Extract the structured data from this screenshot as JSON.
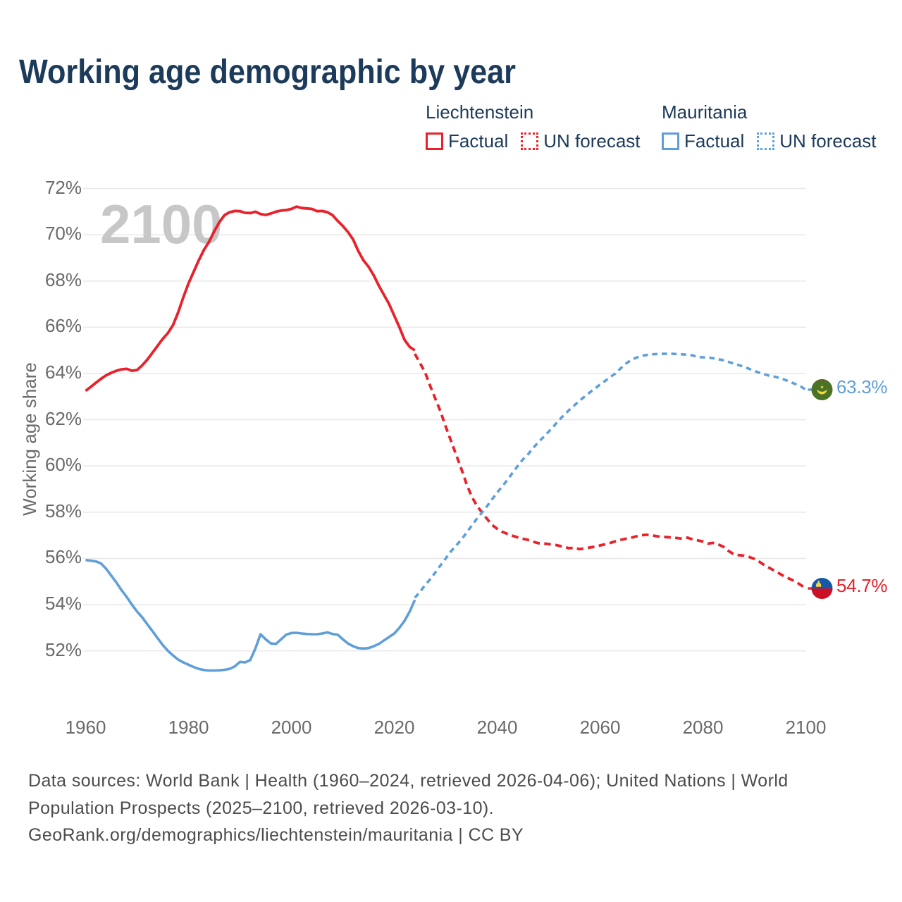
{
  "title": "Working age demographic by year",
  "watermark": "2100",
  "legend": {
    "groups": [
      {
        "label": "Liechtenstein",
        "color": "#e8212a",
        "items": [
          {
            "label": "Factual",
            "style": "solid"
          },
          {
            "label": "UN forecast",
            "style": "dashed"
          }
        ]
      },
      {
        "label": "Mauritania",
        "color": "#5f9fd9",
        "items": [
          {
            "label": "Factual",
            "style": "solid"
          },
          {
            "label": "UN forecast",
            "style": "dashed"
          }
        ]
      }
    ]
  },
  "y_axis": {
    "title": "Working age share",
    "tick_labels": [
      "72%",
      "70%",
      "68%",
      "66%",
      "64%",
      "62%",
      "60%",
      "58%",
      "56%",
      "54%",
      "52%"
    ],
    "tick_values": [
      72,
      70,
      68,
      66,
      64,
      62,
      60,
      58,
      56,
      54,
      52
    ]
  },
  "x_axis": {
    "tick_labels": [
      "1960",
      "1980",
      "2000",
      "2020",
      "2040",
      "2060",
      "2080",
      "2100"
    ],
    "tick_values": [
      1960,
      1980,
      2000,
      2020,
      2040,
      2060,
      2080,
      2100
    ]
  },
  "end_labels": [
    {
      "country": "Mauritania",
      "text": "63.3%",
      "value": 63.3,
      "color": "#5f9fd9",
      "flag": "mauritania"
    },
    {
      "country": "Liechtenstein",
      "text": "54.7%",
      "value": 54.7,
      "color": "#e8212a",
      "flag": "liechtenstein"
    }
  ],
  "footer": {
    "lines": [
      "Data sources: World Bank | Health (1960–2024, retrieved 2026-04-06); United Nations | World",
      "Population Prospects (2025–2100, retrieved 2026-03-10).",
      "GeoRank.org/demographics/liechtenstein/mauritania | CC BY"
    ]
  },
  "chart_data": {
    "type": "line",
    "title": "Working age demographic by year",
    "xlabel": "",
    "ylabel": "Working age share",
    "x_range": [
      1960,
      2100
    ],
    "ylim": [
      52,
      72
    ],
    "y_tick_step": 2,
    "y_unit": "%",
    "grid": "horizontal",
    "legend_position": "top-right",
    "series": [
      {
        "name": "Liechtenstein",
        "segment": "Factual",
        "style": "solid",
        "color": "#e8212a",
        "years": [
          1960,
          1961,
          1962,
          1963,
          1964,
          1965,
          1966,
          1967,
          1968,
          1969,
          1970,
          1971,
          1972,
          1973,
          1974,
          1975,
          1976,
          1977,
          1978,
          1979,
          1980,
          1981,
          1982,
          1983,
          1984,
          1985,
          1986,
          1987,
          1988,
          1989,
          1990,
          1991,
          1992,
          1993,
          1994,
          1995,
          1996,
          1997,
          1998,
          1999,
          2000,
          2001,
          2002,
          2003,
          2004,
          2005,
          2006,
          2007,
          2008,
          2009,
          2010,
          2011,
          2012,
          2013,
          2014,
          2015,
          2016,
          2017,
          2018,
          2019,
          2020,
          2021,
          2022,
          2023,
          2024
        ],
        "values": [
          63.25,
          63.42,
          63.6,
          63.77,
          63.92,
          64.03,
          64.12,
          64.18,
          64.2,
          64.12,
          64.15,
          64.35,
          64.6,
          64.9,
          65.2,
          65.5,
          65.75,
          66.1,
          66.65,
          67.3,
          67.9,
          68.4,
          68.9,
          69.35,
          69.7,
          70.15,
          70.55,
          70.85,
          70.98,
          71.03,
          71.02,
          70.95,
          70.94,
          71.0,
          70.9,
          70.86,
          70.92,
          71.0,
          71.05,
          71.07,
          71.12,
          71.22,
          71.16,
          71.14,
          71.12,
          71.02,
          71.03,
          70.98,
          70.85,
          70.6,
          70.38,
          70.12,
          69.8,
          69.3,
          68.9,
          68.62,
          68.25,
          67.8,
          67.4,
          67.0,
          66.5,
          66.0,
          65.45,
          65.15,
          65.0
        ]
      },
      {
        "name": "Liechtenstein",
        "segment": "UN forecast",
        "style": "dashed",
        "color": "#e8212a",
        "years": [
          2024,
          2025,
          2026,
          2027,
          2028,
          2029,
          2030,
          2031,
          2032,
          2033,
          2034,
          2035,
          2036,
          2037,
          2038,
          2039,
          2040,
          2041,
          2042,
          2043,
          2044,
          2045,
          2046,
          2047,
          2048,
          2049,
          2050,
          2051,
          2052,
          2053,
          2054,
          2055,
          2056,
          2057,
          2058,
          2059,
          2060,
          2061,
          2062,
          2063,
          2064,
          2065,
          2066,
          2067,
          2068,
          2069,
          2070,
          2071,
          2072,
          2073,
          2074,
          2075,
          2076,
          2077,
          2078,
          2079,
          2080,
          2081,
          2082,
          2083,
          2084,
          2085,
          2086,
          2087,
          2088,
          2089,
          2090,
          2091,
          2092,
          2093,
          2094,
          2095,
          2096,
          2097,
          2098,
          2099,
          2100
        ],
        "values": [
          64.85,
          64.45,
          64.05,
          63.45,
          62.9,
          62.35,
          61.7,
          61.1,
          60.5,
          59.9,
          59.25,
          58.7,
          58.3,
          58.0,
          57.72,
          57.45,
          57.28,
          57.15,
          57.06,
          56.98,
          56.91,
          56.85,
          56.8,
          56.72,
          56.66,
          56.65,
          56.62,
          56.6,
          56.55,
          56.5,
          56.44,
          56.47,
          56.4,
          56.43,
          56.47,
          56.51,
          56.56,
          56.61,
          56.67,
          56.74,
          56.8,
          56.85,
          56.89,
          56.95,
          57.0,
          57.02,
          57.0,
          56.96,
          56.93,
          56.92,
          56.9,
          56.88,
          56.85,
          56.9,
          56.82,
          56.78,
          56.73,
          56.64,
          56.67,
          56.6,
          56.5,
          56.32,
          56.18,
          56.14,
          56.12,
          56.06,
          55.98,
          55.85,
          55.7,
          55.58,
          55.45,
          55.33,
          55.2,
          55.1,
          55.0,
          54.85,
          54.7
        ]
      },
      {
        "name": "Mauritania",
        "segment": "Factual",
        "style": "solid",
        "color": "#5f9fd9",
        "years": [
          1960,
          1961,
          1962,
          1963,
          1964,
          1965,
          1966,
          1967,
          1968,
          1969,
          1970,
          1971,
          1972,
          1973,
          1974,
          1975,
          1976,
          1977,
          1978,
          1979,
          1980,
          1981,
          1982,
          1983,
          1984,
          1985,
          1986,
          1987,
          1988,
          1989,
          1990,
          1991,
          1992,
          1993,
          1994,
          1995,
          1996,
          1997,
          1998,
          1999,
          2000,
          2001,
          2002,
          2003,
          2004,
          2005,
          2006,
          2007,
          2008,
          2009,
          2010,
          2011,
          2012,
          2013,
          2014,
          2015,
          2016,
          2017,
          2018,
          2019,
          2020,
          2021,
          2022,
          2023,
          2024
        ],
        "values": [
          55.93,
          55.9,
          55.87,
          55.78,
          55.55,
          55.25,
          54.95,
          54.62,
          54.33,
          54.0,
          53.7,
          53.45,
          53.15,
          52.85,
          52.55,
          52.25,
          52.0,
          51.8,
          51.62,
          51.5,
          51.4,
          51.3,
          51.22,
          51.17,
          51.15,
          51.15,
          51.16,
          51.18,
          51.22,
          51.33,
          51.52,
          51.5,
          51.6,
          52.1,
          52.72,
          52.5,
          52.32,
          52.3,
          52.5,
          52.7,
          52.77,
          52.78,
          52.75,
          52.73,
          52.72,
          52.72,
          52.75,
          52.8,
          52.73,
          52.7,
          52.5,
          52.32,
          52.2,
          52.12,
          52.1,
          52.12,
          52.2,
          52.3,
          52.45,
          52.6,
          52.75,
          53.0,
          53.3,
          53.7,
          54.2
        ]
      },
      {
        "name": "Mauritania",
        "segment": "UN forecast",
        "style": "dashed",
        "color": "#5f9fd9",
        "years": [
          2024,
          2025,
          2026,
          2027,
          2028,
          2029,
          2030,
          2031,
          2032,
          2033,
          2034,
          2035,
          2036,
          2037,
          2038,
          2039,
          2040,
          2041,
          2042,
          2043,
          2044,
          2045,
          2046,
          2047,
          2048,
          2049,
          2050,
          2051,
          2052,
          2053,
          2054,
          2055,
          2056,
          2057,
          2058,
          2059,
          2060,
          2061,
          2062,
          2063,
          2064,
          2065,
          2066,
          2067,
          2068,
          2069,
          2070,
          2071,
          2072,
          2073,
          2074,
          2075,
          2076,
          2077,
          2078,
          2079,
          2080,
          2081,
          2082,
          2083,
          2084,
          2085,
          2086,
          2087,
          2088,
          2089,
          2090,
          2091,
          2092,
          2093,
          2094,
          2095,
          2096,
          2097,
          2098,
          2099,
          2100
        ],
        "values": [
          54.3,
          54.55,
          54.85,
          55.1,
          55.4,
          55.7,
          56.0,
          56.3,
          56.55,
          56.8,
          57.1,
          57.4,
          57.7,
          57.97,
          58.25,
          58.55,
          58.85,
          59.12,
          59.4,
          59.7,
          60.0,
          60.28,
          60.5,
          60.78,
          61.02,
          61.25,
          61.48,
          61.72,
          61.98,
          62.2,
          62.42,
          62.62,
          62.82,
          63.0,
          63.18,
          63.35,
          63.52,
          63.68,
          63.85,
          64.0,
          64.22,
          64.42,
          64.58,
          64.68,
          64.76,
          64.8,
          64.83,
          64.84,
          64.85,
          64.85,
          64.85,
          64.84,
          64.83,
          64.81,
          64.78,
          64.71,
          64.7,
          64.69,
          64.66,
          64.62,
          64.57,
          64.5,
          64.43,
          64.36,
          64.29,
          64.2,
          64.11,
          64.03,
          63.96,
          63.9,
          63.86,
          63.8,
          63.72,
          63.63,
          63.54,
          63.44,
          63.3
        ]
      }
    ],
    "end_values": {
      "Mauritania": "63.3%",
      "Liechtenstein": "54.7%"
    }
  }
}
